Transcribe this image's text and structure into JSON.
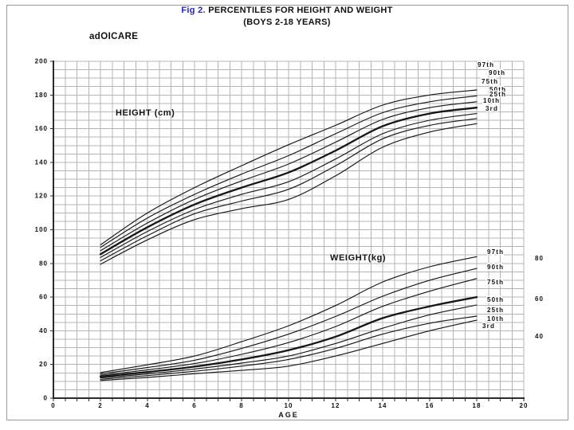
{
  "page": {
    "fig_label": "Fig 2.",
    "title_rest": " PERCENTILES FOR HEIGHT AND WEIGHT",
    "subtitle": "(BOYS 2-18 YEARS)",
    "brand": "adOICARE"
  },
  "colors": {
    "fig_label_blue": "#2222cc",
    "text": "#111111",
    "grid": "#b4b4b4",
    "axis": "#2b2b2b",
    "curve": "#161616"
  },
  "chart_data": {
    "type": "line",
    "title": "Fig 2. PERCENTILES FOR HEIGHT AND WEIGHT",
    "subtitle": "(BOYS 2-18 YEARS)",
    "xlabel": "AGE",
    "x": [
      2,
      4,
      6,
      8,
      10,
      12,
      14,
      16,
      18
    ],
    "xlim": [
      0,
      20
    ],
    "ylim": [
      0,
      200
    ],
    "x_ticks": [
      0,
      2,
      4,
      6,
      8,
      10,
      12,
      14,
      16,
      18,
      20
    ],
    "y_ticks_left": [
      0,
      20,
      40,
      60,
      80,
      100,
      120,
      140,
      160,
      180,
      200
    ],
    "y_ticks_right": [
      80,
      60,
      40
    ],
    "grid": "on",
    "legend_position": "right-of-curves",
    "groups": [
      {
        "label": "HEIGHT (cm)",
        "series": [
          {
            "name": "97th",
            "values": [
              91,
              110,
              125,
              138,
              150.5,
              162,
              174,
              180,
              183
            ]
          },
          {
            "name": "90th",
            "values": [
              89.5,
              107,
              121,
              133,
              144,
              157,
              169.5,
              176,
              179.5
            ]
          },
          {
            "name": "75th",
            "values": [
              87.5,
              104,
              118,
              129,
              139,
              152,
              165.5,
              172.5,
              176
            ]
          },
          {
            "name": "50th",
            "values": [
              85.5,
              101.5,
              115,
              125,
              134,
              147,
              161.5,
              169,
              172.5
            ]
          },
          {
            "name": "25th",
            "values": [
              83.5,
              99,
              112,
              121,
              128.5,
              142,
              157,
              165,
              169
            ]
          },
          {
            "name": "10th",
            "values": [
              81.5,
              96.5,
              109.5,
              117,
              124,
              138,
              154,
              162,
              166
            ]
          },
          {
            "name": "3rd",
            "values": [
              79.5,
              94,
              106,
              112.5,
              118,
              132,
              149,
              158,
              163
            ]
          }
        ]
      },
      {
        "label": "WEIGHT(kg)",
        "series": [
          {
            "name": "97th",
            "values": [
              15.2,
              19.8,
              25,
              33.5,
              43,
              55,
              69,
              78,
              84
            ]
          },
          {
            "name": "90th",
            "values": [
              14.4,
              18.2,
              22.5,
              29.5,
              38,
              48.5,
              60.5,
              70,
              77
            ]
          },
          {
            "name": "75th",
            "values": [
              13.6,
              16.8,
              20.5,
              26,
              33,
              42.5,
              54.5,
              63.5,
              71
            ]
          },
          {
            "name": "50th",
            "values": [
              12.8,
              15.5,
              18.7,
              23,
              28.5,
              36.5,
              47.5,
              54.5,
              60
            ]
          },
          {
            "name": "25th",
            "values": [
              12,
              14.4,
              17.3,
              20.8,
              25,
              32.5,
              41.5,
              49.5,
              55.3
            ]
          },
          {
            "name": "10th",
            "values": [
              11.2,
              13.4,
              16,
              19,
              23,
              29.5,
              38,
              44.5,
              48.7
            ]
          },
          {
            "name": "3rd",
            "values": [
              10.5,
              12.3,
              14.5,
              16.5,
              19,
              25,
              32.5,
              40,
              46.3
            ]
          }
        ]
      }
    ]
  }
}
